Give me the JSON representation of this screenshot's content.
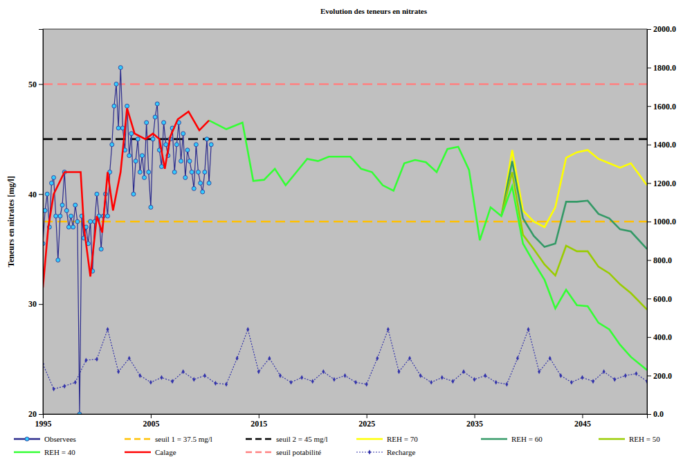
{
  "chart_data": {
    "type": "line",
    "title": "Evolution des teneurs en nitrates",
    "ylabel": "Teneurs en nitrates [mg/l]",
    "xlim": [
      1995,
      2051
    ],
    "xticks": [
      1995,
      2005,
      2015,
      2025,
      2035,
      2045
    ],
    "ylim": [
      20,
      55
    ],
    "yticks": [
      20,
      30,
      40,
      50
    ],
    "y2lim": [
      0,
      2000
    ],
    "y2ticks": [
      {
        "value": 0,
        "label": "0.0"
      },
      {
        "value": 200,
        "label": "200.0"
      },
      {
        "value": 400,
        "label": "400.0"
      },
      {
        "value": 600,
        "label": "600.0"
      },
      {
        "value": 800,
        "label": "800.0"
      },
      {
        "value": 1000,
        "label": "1000.0"
      },
      {
        "value": 1200,
        "label": "1200.0"
      },
      {
        "value": 1400,
        "label": "1400.0"
      },
      {
        "value": 1600,
        "label": "1600.0"
      },
      {
        "value": 1800,
        "label": "1800.0"
      },
      {
        "value": 2000,
        "label": "2000.0"
      }
    ],
    "grid": false,
    "legend": "bottom",
    "series": [
      {
        "name": "Observees",
        "color": "#2a2a8c",
        "line_style": "solid",
        "marker": "circle",
        "x": [
          1995,
          1995.2,
          1995.4,
          1995.6,
          1995.8,
          1996,
          1996.2,
          1996.4,
          1996.6,
          1996.8,
          1997,
          1997.2,
          1997.4,
          1997.6,
          1997.8,
          1998,
          1998.2,
          1998.4,
          1998.6,
          1998.8,
          1999,
          1999.2,
          1999.4,
          1999.6,
          1999.8,
          2000,
          2000.2,
          2000.4,
          2000.6,
          2000.8,
          2001,
          2001.2,
          2001.4,
          2001.6,
          2001.8,
          2002,
          2002.2,
          2002.4,
          2002.6,
          2002.8,
          2003,
          2003.2,
          2003.4,
          2003.6,
          2003.8,
          2004,
          2004.2,
          2004.4,
          2004.6,
          2004.8,
          2005,
          2005.2,
          2005.4,
          2005.6,
          2005.8,
          2006,
          2006.2,
          2006.4,
          2006.6,
          2006.8,
          2007,
          2007.2,
          2007.4,
          2007.6,
          2007.8,
          2008,
          2008.2,
          2008.4,
          2008.6,
          2008.8,
          2009,
          2009.2,
          2009.4,
          2009.6,
          2009.8,
          2010,
          2010.2,
          2010.4,
          2010.6
        ],
        "values": [
          35.5,
          38.5,
          40,
          37,
          41,
          41.5,
          38,
          34,
          38,
          39,
          42,
          38.5,
          37,
          38,
          37,
          39,
          37.5,
          20,
          38,
          36,
          37,
          35.5,
          37.5,
          33,
          37.5,
          40,
          38,
          35,
          38,
          40,
          38,
          42,
          44.5,
          48,
          50,
          46,
          51.5,
          46,
          44,
          48,
          43.5,
          45.5,
          40,
          43,
          45,
          42,
          43.5,
          41.5,
          46.5,
          42,
          38.8,
          45,
          47,
          48.2,
          44,
          42.5,
          46.5,
          44.5,
          43.5,
          45,
          46,
          42,
          44.5,
          46.5,
          43,
          45.5,
          41.5,
          44,
          43,
          42,
          40.5,
          44.5,
          42,
          41,
          40.2,
          42,
          45,
          41,
          44.5
        ]
      },
      {
        "name": "seuil 1 = 37.5 mg/l",
        "color": "#ffc000",
        "line_style": "dashed",
        "x": [
          1995,
          2051
        ],
        "values": [
          37.5,
          37.5
        ]
      },
      {
        "name": "seuil 2 = 45 mg/l",
        "color": "#000000",
        "line_style": "dashed",
        "x": [
          1995,
          2051
        ],
        "values": [
          45,
          45
        ]
      },
      {
        "name": "REH = 70",
        "color": "#ffff00",
        "line_style": "solid",
        "x": [
          2037.5,
          2038.5,
          2039.5,
          2040.5,
          2041.5,
          2042.5,
          2043.5,
          2044.5,
          2045.5,
          2046.5,
          2047.5,
          2048.5,
          2049.5,
          2051
        ],
        "values": [
          38,
          44,
          38.5,
          37.5,
          37,
          38.8,
          43.3,
          43.8,
          44,
          43.2,
          42.8,
          42.4,
          42.8,
          40.8
        ]
      },
      {
        "name": "REH = 60",
        "color": "#339966",
        "line_style": "solid",
        "x": [
          2037.5,
          2038.5,
          2039.5,
          2040.5,
          2041.5,
          2042.5,
          2043.5,
          2044.5,
          2045.5,
          2046.5,
          2047.5,
          2048.5,
          2049.5,
          2051
        ],
        "values": [
          38,
          43,
          37.8,
          36.2,
          35.2,
          35.5,
          39.3,
          39.3,
          39.4,
          38.2,
          37.8,
          36.8,
          36.6,
          35
        ]
      },
      {
        "name": "REH = 50",
        "color": "#99cc00",
        "line_style": "solid",
        "x": [
          2037.5,
          2038.5,
          2039.5,
          2040.5,
          2041.5,
          2042.5,
          2043.5,
          2044.5,
          2045.5,
          2046.5,
          2047.5,
          2048.5,
          2049.5,
          2051
        ],
        "values": [
          38,
          42,
          36.3,
          35,
          33.6,
          32.6,
          35.3,
          34.8,
          34.8,
          33.4,
          32.8,
          31.8,
          31,
          29.5
        ]
      },
      {
        "name": "REH = 40",
        "color": "#33ff33",
        "line_style": "solid",
        "x": [
          2010.4,
          2012,
          2013.5,
          2014.5,
          2015.5,
          2016.5,
          2017.5,
          2018.5,
          2019.5,
          2020.5,
          2021.5,
          2022.5,
          2023.5,
          2024.5,
          2025.5,
          2026.5,
          2027.5,
          2028.5,
          2029.5,
          2030.5,
          2031.5,
          2032.5,
          2033.5,
          2034.5,
          2035.5,
          2036.5,
          2037.5,
          2038.5,
          2039.5,
          2040.5,
          2041.5,
          2042.5,
          2043.5,
          2044.5,
          2045.5,
          2046.5,
          2047.5,
          2048.5,
          2049.5,
          2051
        ],
        "values": [
          46.7,
          45.9,
          46.5,
          41.2,
          41.3,
          42.3,
          40.8,
          42,
          43.2,
          43,
          43.4,
          43.4,
          43.4,
          42.3,
          42,
          40.8,
          40.3,
          42.8,
          43.1,
          42.9,
          42,
          44.1,
          44.3,
          42.2,
          35.8,
          38.8,
          38,
          40.7,
          35.5,
          33.8,
          32.2,
          29.6,
          31.3,
          29.9,
          29.8,
          28.3,
          27.7,
          26.3,
          25.2,
          24.0
        ]
      },
      {
        "name": "Calage",
        "color": "#ff0000",
        "line_style": "solid",
        "x": [
          1995,
          1995.5,
          1996,
          1997,
          1998.5,
          1998.8,
          1999.4,
          2000,
          2000.5,
          2001,
          2001.5,
          2002.2,
          2002.8,
          2003.5,
          2004.5,
          2005.2,
          2005.8,
          2006.3,
          2006.8,
          2007.5,
          2008.5,
          2009.5,
          2010.4
        ],
        "values": [
          31.5,
          37,
          40,
          42,
          42,
          37,
          32.5,
          38,
          36.5,
          42,
          38.5,
          42,
          47.8,
          45.5,
          45,
          45.5,
          45,
          42.3,
          45.2,
          46.8,
          47.5,
          45.8,
          46.7
        ]
      },
      {
        "name": "seuil potabilité",
        "color": "#ff8080",
        "line_style": "dashed",
        "x": [
          1995,
          2051
        ],
        "values": [
          50,
          50
        ]
      },
      {
        "name": "Recharge",
        "color": "#3333aa",
        "line_style": "dotted",
        "marker": "diamond",
        "axis": "y2",
        "x": [
          1995,
          1996,
          1997,
          1998,
          1999,
          2000,
          2001,
          2002,
          2003,
          2004,
          2005,
          2006,
          2007,
          2008,
          2009,
          2010,
          2011,
          2012,
          2013,
          2014,
          2015,
          2016,
          2017,
          2018,
          2019,
          2020,
          2021,
          2022,
          2023,
          2024,
          2025,
          2026,
          2027,
          2028,
          2029,
          2030,
          2031,
          2032,
          2033,
          2034,
          2035,
          2036,
          2037,
          2038,
          2039,
          2040,
          2041,
          2042,
          2043,
          2044,
          2045,
          2046,
          2047,
          2048,
          2049,
          2050,
          2051
        ],
        "values": [
          260,
          130,
          145,
          165,
          280,
          285,
          440,
          220,
          290,
          200,
          165,
          190,
          170,
          220,
          180,
          200,
          160,
          155,
          290,
          440,
          220,
          290,
          200,
          165,
          190,
          170,
          220,
          180,
          200,
          165,
          155,
          290,
          440,
          220,
          290,
          200,
          165,
          190,
          170,
          220,
          180,
          200,
          165,
          155,
          290,
          440,
          220,
          290,
          200,
          165,
          190,
          170,
          220,
          180,
          200,
          210,
          170
        ]
      }
    ]
  }
}
